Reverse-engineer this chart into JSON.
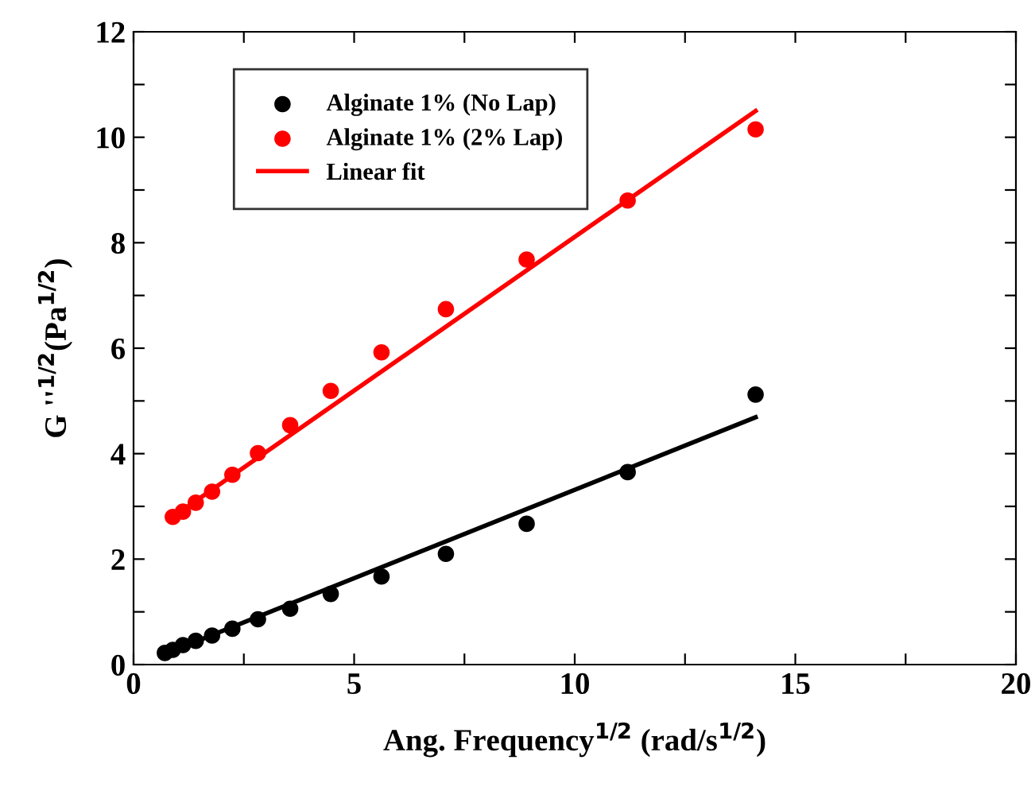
{
  "chart_data": {
    "type": "scatter",
    "xlabel": "Ang. Frequency$^{1/2}$ (rad/s$^{1/2}$)",
    "ylabel": "G ''$^{1/2}$(Pa$^{1/2}$)",
    "series": [
      {
        "name": "Alginate 1% (No Lap)",
        "color": "#000000",
        "x": [
          0.71,
          0.89,
          1.12,
          1.41,
          1.78,
          2.24,
          2.82,
          3.55,
          4.47,
          5.62,
          7.08,
          8.91,
          11.2,
          14.1
        ],
        "values": [
          0.22,
          0.28,
          0.37,
          0.45,
          0.55,
          0.68,
          0.86,
          1.06,
          1.34,
          1.67,
          2.1,
          2.67,
          3.65,
          5.12
        ]
      },
      {
        "name": "Alginate 1% (2% Lap)",
        "color": "#ff0000",
        "x": [
          0.89,
          1.12,
          1.41,
          1.78,
          2.24,
          2.82,
          3.55,
          4.47,
          5.62,
          7.08,
          8.91,
          11.2,
          14.1
        ],
        "values": [
          2.8,
          2.9,
          3.07,
          3.28,
          3.6,
          4.01,
          4.54,
          5.19,
          5.92,
          6.74,
          7.68,
          8.8,
          10.15
        ]
      },
      {
        "name": "Linear fit",
        "type": "line",
        "marker": "none",
        "color": "#ff0000",
        "x": [
          0.89,
          14.1
        ],
        "values": [
          2.8,
          10.5
        ]
      },
      {
        "type": "line",
        "marker": "none",
        "color": "#000000",
        "x": [
          0.65,
          14.1
        ],
        "values": [
          0.18,
          4.69
        ]
      }
    ],
    "xlim": [
      0,
      20
    ],
    "ylim": [
      0,
      12
    ],
    "xticks": [
      0,
      {
        "value": 2.5,
        "label": null
      },
      5,
      {
        "value": 7.5,
        "label": null
      },
      10,
      {
        "value": 12.5,
        "label": null
      },
      15,
      {
        "value": 17.5,
        "label": null
      },
      20
    ],
    "yticks": [
      0,
      {
        "value": 1,
        "label": null
      },
      2,
      {
        "value": 3,
        "label": null
      },
      4,
      {
        "value": 5,
        "label": null
      },
      6,
      {
        "value": 7,
        "label": null
      },
      8,
      {
        "value": 9,
        "label": null
      },
      10,
      {
        "value": 11,
        "label": null
      },
      12
    ],
    "marker": "circle",
    "grid": false,
    "legend": "top left"
  }
}
